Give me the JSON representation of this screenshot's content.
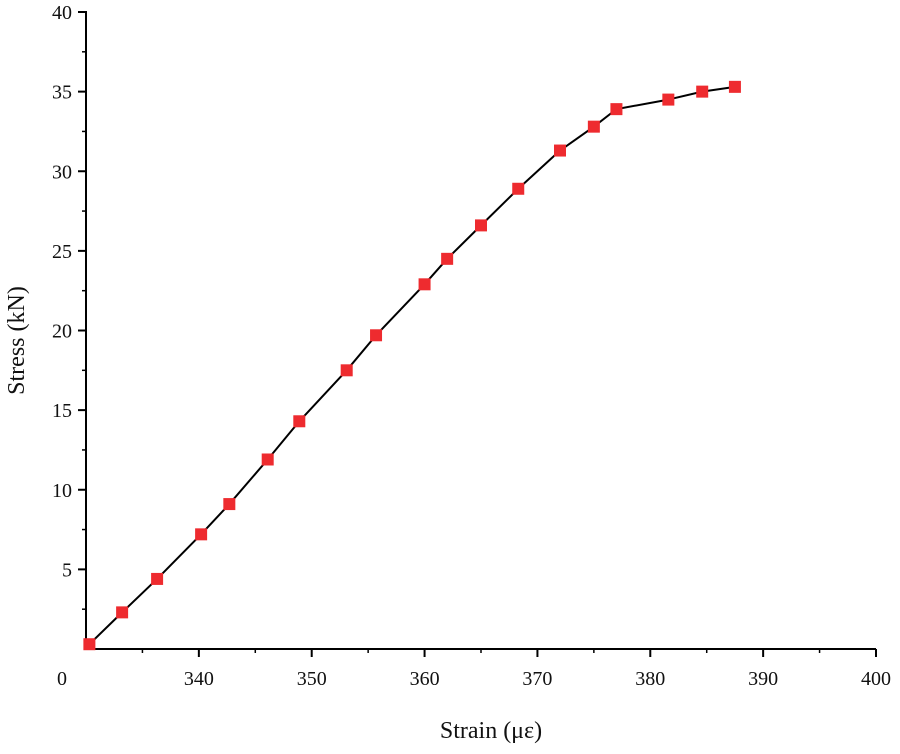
{
  "chart_data": {
    "type": "line",
    "xlabel": "Strain (με)",
    "ylabel": "Stress (kN)",
    "xlim": [
      330,
      400
    ],
    "ylim": [
      0,
      40
    ],
    "x_ticks": [
      340,
      350,
      360,
      370,
      380,
      390,
      400
    ],
    "y_ticks": [
      5,
      10,
      15,
      20,
      25,
      30,
      35,
      40
    ],
    "origin_label": "0",
    "marker": "square",
    "marker_color": "#ee2b2f",
    "line_color": "#000000",
    "grid": false,
    "series": [
      {
        "x": [
          330.3,
          333.2,
          336.3,
          340.2,
          342.7,
          346.1,
          348.9,
          353.1,
          355.7,
          360.0,
          362.0,
          365.0,
          368.3,
          372.0,
          375.0,
          377.0,
          381.6,
          384.6,
          387.5
        ],
        "y": [
          0.3,
          2.3,
          4.4,
          7.2,
          9.1,
          11.9,
          14.3,
          17.5,
          19.7,
          22.9,
          24.5,
          26.6,
          28.9,
          31.3,
          32.8,
          33.9,
          34.5,
          35.0,
          35.3
        ]
      }
    ]
  }
}
